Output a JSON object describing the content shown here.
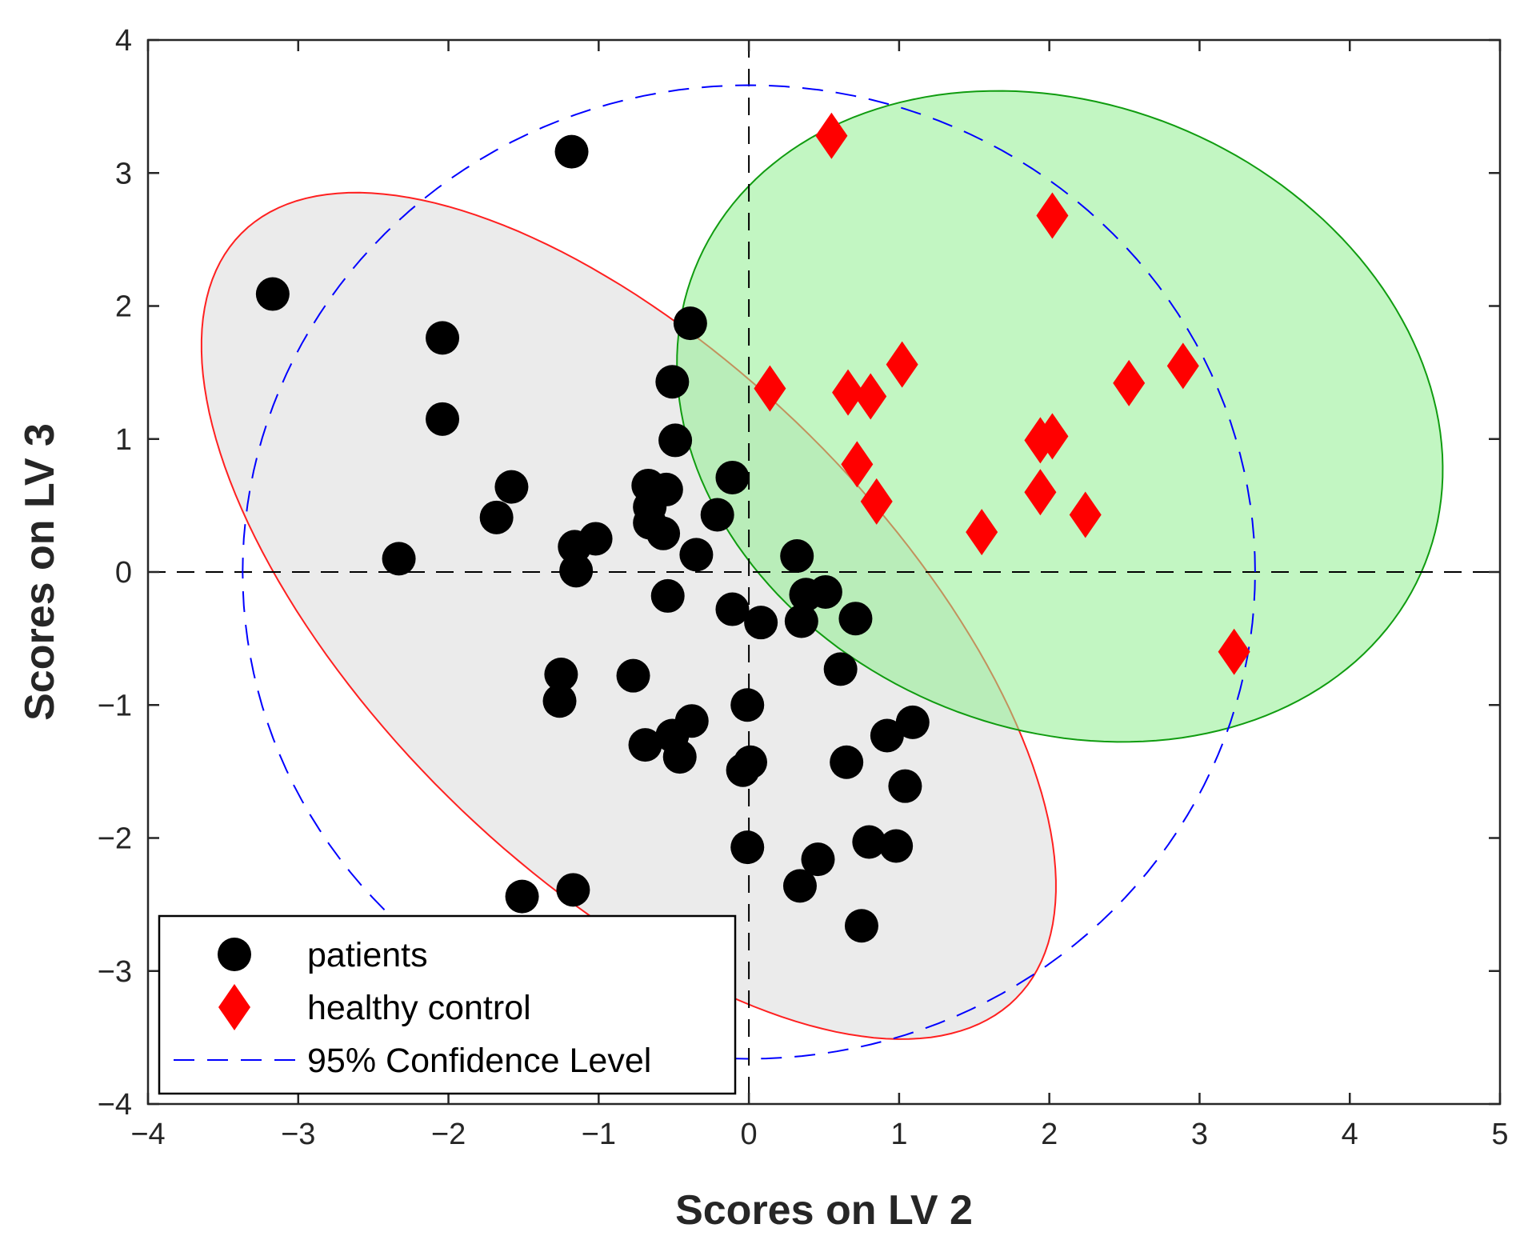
{
  "chart_data": {
    "type": "scatter",
    "xlabel": "Scores on LV 2",
    "ylabel": "Scores on LV 3",
    "xlim": [
      -4,
      5
    ],
    "ylim": [
      -4,
      4
    ],
    "xticks": [
      -4,
      -3,
      -2,
      -1,
      0,
      1,
      2,
      3,
      4,
      5
    ],
    "yticks": [
      -4,
      -3,
      -2,
      -1,
      0,
      1,
      2,
      3,
      4
    ],
    "xtick_labels": [
      "−4",
      "−3",
      "−2",
      "−1",
      "0",
      "1",
      "2",
      "3",
      "4",
      "5"
    ],
    "ytick_labels": [
      "−4",
      "−3",
      "−2",
      "−1",
      "0",
      "1",
      "2",
      "3",
      "4"
    ],
    "legend_position": "bottom-left",
    "reference_lines": {
      "x": 0,
      "y": 0,
      "style": "dashed",
      "color": "#000000"
    },
    "series": [
      {
        "name": "patients",
        "marker": "circle",
        "color": "#000000",
        "points": [
          [
            -3.17,
            2.09
          ],
          [
            -1.18,
            3.16
          ],
          [
            -2.04,
            1.76
          ],
          [
            -2.04,
            1.15
          ],
          [
            -1.58,
            0.64
          ],
          [
            -1.68,
            0.41
          ],
          [
            -2.33,
            0.1
          ],
          [
            -1.16,
            0.19
          ],
          [
            -1.02,
            0.25
          ],
          [
            -1.15,
            0.01
          ],
          [
            -0.67,
            0.65
          ],
          [
            -0.55,
            0.62
          ],
          [
            -0.66,
            0.49
          ],
          [
            -0.66,
            0.37
          ],
          [
            -0.57,
            0.29
          ],
          [
            -0.11,
            0.71
          ],
          [
            -0.21,
            0.43
          ],
          [
            -0.35,
            0.13
          ],
          [
            -0.39,
            1.87
          ],
          [
            -0.51,
            1.43
          ],
          [
            -0.49,
            0.99
          ],
          [
            -0.54,
            -0.18
          ],
          [
            -0.11,
            -0.28
          ],
          [
            0.08,
            -0.38
          ],
          [
            0.32,
            0.12
          ],
          [
            0.38,
            -0.17
          ],
          [
            0.51,
            -0.15
          ],
          [
            0.35,
            -0.37
          ],
          [
            0.71,
            -0.35
          ],
          [
            0.61,
            -0.73
          ],
          [
            -1.25,
            -0.77
          ],
          [
            -1.26,
            -0.97
          ],
          [
            -0.77,
            -0.78
          ],
          [
            -0.01,
            -1.0
          ],
          [
            -0.38,
            -1.12
          ],
          [
            -0.51,
            -1.23
          ],
          [
            -0.69,
            -1.3
          ],
          [
            -0.46,
            -1.39
          ],
          [
            0.01,
            -1.43
          ],
          [
            -0.04,
            -1.49
          ],
          [
            0.65,
            -1.43
          ],
          [
            0.92,
            -1.23
          ],
          [
            1.09,
            -1.13
          ],
          [
            1.04,
            -1.61
          ],
          [
            0.8,
            -2.03
          ],
          [
            0.98,
            -2.06
          ],
          [
            -0.01,
            -2.07
          ],
          [
            0.46,
            -2.16
          ],
          [
            0.34,
            -2.36
          ],
          [
            -1.51,
            -2.44
          ],
          [
            -1.17,
            -2.39
          ],
          [
            0.75,
            -2.66
          ]
        ]
      },
      {
        "name": "healthy control",
        "marker": "diamond",
        "color": "#ff0000",
        "points": [
          [
            0.55,
            3.28
          ],
          [
            2.02,
            2.68
          ],
          [
            0.14,
            1.38
          ],
          [
            0.66,
            1.35
          ],
          [
            0.81,
            1.32
          ],
          [
            1.02,
            1.56
          ],
          [
            2.53,
            1.42
          ],
          [
            2.89,
            1.55
          ],
          [
            1.94,
            0.99
          ],
          [
            2.02,
            1.02
          ],
          [
            0.72,
            0.81
          ],
          [
            0.85,
            0.53
          ],
          [
            1.94,
            0.6
          ],
          [
            2.24,
            0.43
          ],
          [
            1.55,
            0.3
          ],
          [
            3.23,
            -0.6
          ]
        ]
      },
      {
        "name": "95% Confidence Level",
        "type": "ellipse",
        "style": "dashed",
        "color": "#0000ff",
        "center": [
          0,
          0
        ],
        "semi_axes": [
          3.37,
          3.66
        ],
        "rotation_deg": 0
      }
    ],
    "regions": [
      {
        "name": "patients region",
        "type": "ellipse",
        "fill": "#e8e8e8",
        "edge": "#ff2020",
        "center": [
          -0.8,
          -0.33
        ],
        "semi_axes": [
          3.87,
          1.8
        ],
        "rotation_deg": -50
      },
      {
        "name": "healthy control region",
        "type": "ellipse",
        "fill": "#90ee90",
        "edge": "#109c10",
        "center": [
          2.07,
          1.17
        ],
        "semi_axes": [
          2.7,
          2.28
        ],
        "rotation_deg": -38
      }
    ]
  }
}
